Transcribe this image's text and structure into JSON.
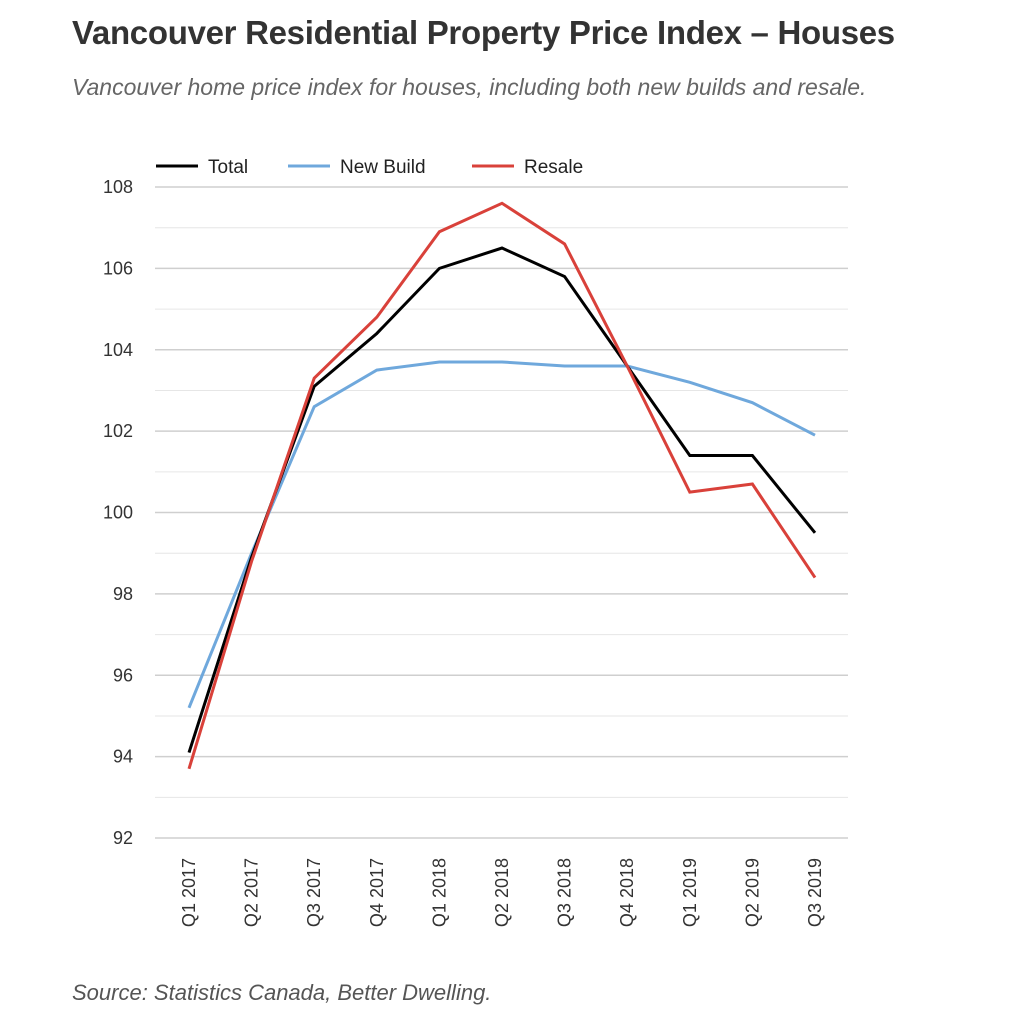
{
  "title": "Vancouver Residential Property Price Index – Houses",
  "subtitle": "Vancouver home price index for houses, including both new builds and resale.",
  "source": "Source: Statistics Canada, Better Dwelling.",
  "chart_data": {
    "type": "line",
    "title": "Vancouver Residential Property Price Index – Houses",
    "xlabel": "",
    "ylabel": "",
    "ylim": [
      92,
      108
    ],
    "yticks": [
      92,
      94,
      96,
      98,
      100,
      102,
      104,
      106,
      108
    ],
    "grid": true,
    "legend_position": "top-left",
    "categories": [
      "Q1 2017",
      "Q2 2017",
      "Q3 2017",
      "Q4 2017",
      "Q1 2018",
      "Q2 2018",
      "Q3 2018",
      "Q4 2018",
      "Q1 2019",
      "Q2 2019",
      "Q3 2019"
    ],
    "series": [
      {
        "name": "Total",
        "color": "#000000",
        "values": [
          94.1,
          98.9,
          103.1,
          104.4,
          106.0,
          106.5,
          105.8,
          103.6,
          101.4,
          101.4,
          99.5
        ]
      },
      {
        "name": "New Build",
        "color": "#6fa8dc",
        "values": [
          95.2,
          99.0,
          102.6,
          103.5,
          103.7,
          103.7,
          103.6,
          103.6,
          103.2,
          102.7,
          101.9
        ]
      },
      {
        "name": "Resale",
        "color": "#d9413a",
        "values": [
          93.7,
          98.8,
          103.3,
          104.8,
          106.9,
          107.6,
          106.6,
          103.6,
          100.5,
          100.7,
          98.4
        ]
      }
    ]
  }
}
